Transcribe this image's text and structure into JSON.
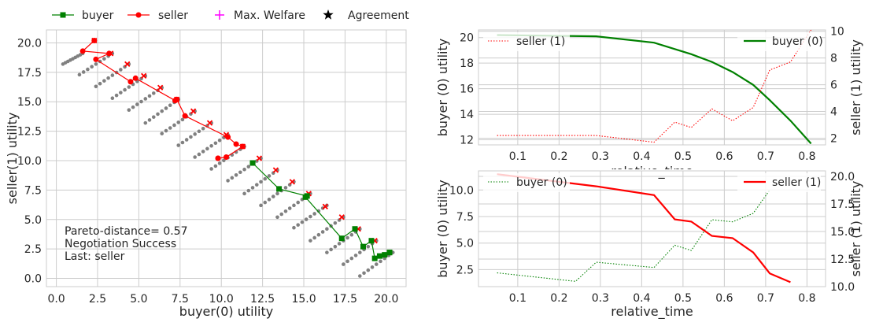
{
  "legend_top": [
    {
      "label": "buyer",
      "color": "#008000",
      "marker": "square"
    },
    {
      "label": "seller",
      "color": "#ff0000",
      "marker": "circle"
    },
    {
      "label": "Max. Welfare",
      "color": "#ff00ff",
      "marker": "plus"
    },
    {
      "label": "Agreement",
      "color": "#000000",
      "marker": "star"
    }
  ],
  "chart_data": [
    {
      "id": "scatter",
      "type": "scatter",
      "xlabel": "buyer(0) utility",
      "ylabel": "seller(1) utility",
      "xlim": [
        -0.6,
        21.2
      ],
      "ylim": [
        -0.7,
        21.1
      ],
      "xticks": [
        "0.0",
        "2.5",
        "5.0",
        "7.5",
        "10.0",
        "12.5",
        "15.0",
        "17.5",
        "20.0"
      ],
      "yticks": [
        "0.0",
        "2.5",
        "5.0",
        "7.5",
        "10.0",
        "12.5",
        "15.0",
        "17.5",
        "20.0"
      ],
      "annotation": [
        "Pareto-distance= 0.57",
        "Negotiation Success",
        "Last: seller"
      ],
      "outcome_lines": [
        {
          "x0": 0.4,
          "y0": 18.2,
          "x1": 1.6,
          "y1": 19.1
        },
        {
          "x0": 1.4,
          "y0": 17.3,
          "x1": 3.4,
          "y1": 19.1
        },
        {
          "x0": 2.4,
          "y0": 16.3,
          "x1": 4.4,
          "y1": 18.2
        },
        {
          "x0": 3.4,
          "y0": 15.3,
          "x1": 5.4,
          "y1": 17.2
        },
        {
          "x0": 4.4,
          "y0": 14.3,
          "x1": 6.4,
          "y1": 16.2
        },
        {
          "x0": 5.4,
          "y0": 13.2,
          "x1": 7.4,
          "y1": 15.2
        },
        {
          "x0": 6.4,
          "y0": 12.3,
          "x1": 8.4,
          "y1": 14.2
        },
        {
          "x0": 7.4,
          "y0": 11.3,
          "x1": 9.4,
          "y1": 13.2
        },
        {
          "x0": 8.4,
          "y0": 10.3,
          "x1": 10.4,
          "y1": 12.2
        },
        {
          "x0": 9.4,
          "y0": 9.3,
          "x1": 11.4,
          "y1": 11.2
        },
        {
          "x0": 10.4,
          "y0": 8.3,
          "x1": 12.4,
          "y1": 10.2
        },
        {
          "x0": 11.4,
          "y0": 7.2,
          "x1": 13.4,
          "y1": 9.2
        },
        {
          "x0": 12.4,
          "y0": 6.2,
          "x1": 14.4,
          "y1": 8.2
        },
        {
          "x0": 13.4,
          "y0": 5.2,
          "x1": 15.4,
          "y1": 7.2
        },
        {
          "x0": 14.4,
          "y0": 4.3,
          "x1": 16.4,
          "y1": 6.2
        },
        {
          "x0": 15.4,
          "y0": 3.2,
          "x1": 17.4,
          "y1": 5.2
        },
        {
          "x0": 16.4,
          "y0": 2.2,
          "x1": 18.4,
          "y1": 4.2
        },
        {
          "x0": 17.4,
          "y0": 1.2,
          "x1": 19.4,
          "y1": 3.2
        },
        {
          "x0": 18.4,
          "y0": 0.2,
          "x1": 20.4,
          "y1": 2.2
        }
      ],
      "outcome_points_per_line": 9,
      "red_x_points": [
        [
          2.3,
          20.2
        ],
        [
          3.3,
          19.1
        ],
        [
          4.3,
          18.2
        ],
        [
          5.3,
          17.2
        ],
        [
          6.3,
          16.2
        ],
        [
          7.3,
          15.2
        ],
        [
          8.3,
          14.2
        ],
        [
          9.3,
          13.2
        ],
        [
          10.3,
          12.2
        ],
        [
          11.3,
          11.2
        ],
        [
          12.3,
          10.2
        ],
        [
          13.3,
          9.2
        ],
        [
          14.3,
          8.2
        ],
        [
          15.3,
          7.2
        ],
        [
          16.3,
          6.1
        ],
        [
          17.3,
          5.2
        ],
        [
          18.3,
          4.2
        ],
        [
          19.3,
          3.2
        ],
        [
          20.2,
          2.2
        ]
      ],
      "series": [
        {
          "name": "seller",
          "color": "#ff0000",
          "marker": "circle",
          "x": [
            2.3,
            1.6,
            3.2,
            2.4,
            4.5,
            4.8,
            7.2,
            7.3,
            7.8,
            10.4,
            10.9,
            11.3,
            10.3,
            9.8,
            9.8
          ],
          "y": [
            20.2,
            19.3,
            19.1,
            18.6,
            16.7,
            17.0,
            15.1,
            15.2,
            13.8,
            12.0,
            11.4,
            11.2,
            10.3,
            10.2,
            10.2
          ]
        },
        {
          "name": "buyer",
          "color": "#008000",
          "marker": "square",
          "x": [
            11.9,
            11.9,
            13.5,
            15.2,
            15.1,
            17.3,
            18.1,
            18.6,
            19.1,
            19.3,
            19.6,
            19.9,
            20.2,
            20.2
          ],
          "y": [
            9.8,
            9.8,
            7.6,
            7.0,
            6.9,
            3.4,
            4.2,
            2.7,
            3.2,
            1.7,
            1.9,
            2.0,
            2.2,
            2.2
          ]
        }
      ]
    },
    {
      "id": "buyer_time",
      "type": "line",
      "xlabel": "relative_time",
      "ylabel": "buyer (0) utility",
      "ylabel_right": "seller (1) utility",
      "xlim": [
        0.005,
        0.845
      ],
      "ylim": [
        11.6,
        20.6
      ],
      "ylim_right": [
        1.5,
        10.1
      ],
      "xticks": [
        "0.1",
        "0.2",
        "0.3",
        "0.4",
        "0.5",
        "0.6",
        "0.7",
        "0.8"
      ],
      "yticks": [
        "12",
        "14",
        "16",
        "18",
        "20"
      ],
      "yticks_right": [
        "2",
        "4",
        "6",
        "8",
        "10"
      ],
      "legend_left": "seller (1)",
      "legend_right": "buyer (0)",
      "series": [
        {
          "name": "buyer (0)",
          "axis": "left",
          "color": "#008000",
          "style": "solid",
          "x": [
            0.05,
            0.29,
            0.43,
            0.52,
            0.57,
            0.62,
            0.67,
            0.71,
            0.76,
            0.81
          ],
          "y": [
            20.2,
            20.1,
            19.6,
            18.7,
            18.1,
            17.3,
            16.3,
            15.1,
            13.5,
            11.7
          ]
        },
        {
          "name": "seller (1)",
          "axis": "right",
          "color": "#ff0000",
          "style": "dotted",
          "x": [
            0.05,
            0.29,
            0.43,
            0.48,
            0.52,
            0.57,
            0.62,
            0.67,
            0.71,
            0.76,
            0.81
          ],
          "y": [
            2.2,
            2.2,
            1.7,
            3.2,
            2.8,
            4.2,
            3.3,
            4.3,
            7.1,
            7.7,
            10.1
          ]
        }
      ]
    },
    {
      "id": "seller_time",
      "type": "line",
      "xlabel": "relative_time",
      "ylabel": "buyer (0) utility",
      "ylabel_right": "seller (1) utility",
      "xlim": [
        0.005,
        0.845
      ],
      "ylim": [
        0.9,
        11.8
      ],
      "ylim_right": [
        10.0,
        20.5
      ],
      "xticks": [
        "0.1",
        "0.2",
        "0.3",
        "0.4",
        "0.5",
        "0.6",
        "0.7",
        "0.8"
      ],
      "yticks": [
        "2.5",
        "5.0",
        "7.5",
        "10.0"
      ],
      "yticks_right": [
        "10.0",
        "12.5",
        "15.0",
        "17.5",
        "20.0"
      ],
      "legend_left": "buyer (0)",
      "legend_right": "seller (1)",
      "series": [
        {
          "name": "buyer (0)",
          "axis": "left",
          "color": "#008000",
          "style": "dotted",
          "x": [
            0.05,
            0.24,
            0.29,
            0.43,
            0.48,
            0.52,
            0.57,
            0.62,
            0.67,
            0.71
          ],
          "y": [
            2.2,
            1.4,
            3.2,
            2.7,
            4.8,
            4.3,
            7.2,
            7.0,
            7.8,
            10.0
          ]
        },
        {
          "name": "seller (1)",
          "axis": "right",
          "color": "#ff0000",
          "style": "solid",
          "x": [
            0.05,
            0.29,
            0.43,
            0.48,
            0.52,
            0.57,
            0.62,
            0.67,
            0.71,
            0.76
          ],
          "y": [
            20.2,
            19.1,
            18.3,
            16.1,
            15.9,
            14.6,
            14.4,
            13.1,
            11.2,
            10.4
          ]
        }
      ]
    }
  ]
}
